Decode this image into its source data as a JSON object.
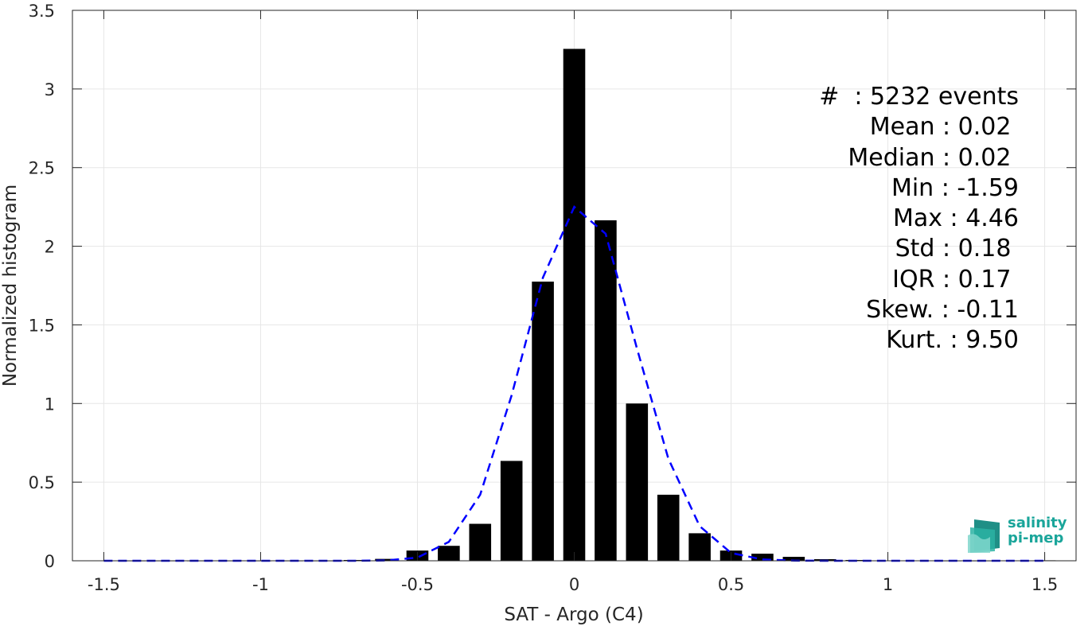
{
  "chart_data": {
    "type": "bar",
    "xlabel": "SAT - Argo (C4)",
    "ylabel": "Normalized histogram",
    "xlim": [
      -1.6,
      1.6
    ],
    "ylim": [
      0,
      3.5
    ],
    "xticks": [
      "-1.5",
      "-1",
      "-0.5",
      "0",
      "0.5",
      "1",
      "1.5"
    ],
    "yticks": [
      "0",
      "0.5",
      "1",
      "1.5",
      "2",
      "2.5",
      "3",
      "3.5"
    ],
    "grid": true,
    "bin_centers": [
      -1.5,
      -1.4,
      -1.3,
      -1.2,
      -1.1,
      -1.0,
      -0.9,
      -0.8,
      -0.7,
      -0.6,
      -0.5,
      -0.4,
      -0.3,
      -0.2,
      -0.1,
      0.0,
      0.1,
      0.2,
      0.3,
      0.4,
      0.5,
      0.6,
      0.7,
      0.8,
      0.9,
      1.0,
      1.1,
      1.2,
      1.3,
      1.4,
      1.5
    ],
    "values": [
      0.002,
      0.0,
      0.0,
      0.0,
      0.0,
      0.0,
      0.0,
      0.0,
      0.005,
      0.012,
      0.065,
      0.095,
      0.235,
      0.635,
      1.775,
      3.255,
      2.165,
      1.0,
      0.42,
      0.175,
      0.065,
      0.045,
      0.025,
      0.01,
      0.005,
      0.002,
      0.002,
      0.0,
      0.0,
      0.002,
      0.003
    ],
    "fit_curve": {
      "style": "dashed",
      "color": "#0000ff",
      "x": [
        -1.5,
        -1.4,
        -1.3,
        -1.2,
        -1.1,
        -1.0,
        -0.9,
        -0.8,
        -0.7,
        -0.6,
        -0.5,
        -0.4,
        -0.3,
        -0.2,
        -0.1,
        0.0,
        0.1,
        0.2,
        0.3,
        0.4,
        0.5,
        0.6,
        0.7,
        0.8,
        0.9,
        1.0,
        1.1,
        1.2,
        1.3,
        1.4,
        1.5
      ],
      "y": [
        0,
        0,
        0,
        0,
        0,
        0,
        0,
        0,
        0,
        0.002,
        0.02,
        0.12,
        0.42,
        1.05,
        1.8,
        2.25,
        2.08,
        1.35,
        0.65,
        0.22,
        0.05,
        0.008,
        0.001,
        0,
        0,
        0,
        0,
        0,
        0,
        0,
        0
      ]
    },
    "bar_color": "#000000"
  },
  "stats": [
    "#  : 5232 events",
    "Mean : 0.02 ",
    "Median : 0.02 ",
    "Min : -1.59",
    "Max : 4.46",
    "Std : 0.18 ",
    "IQR : 0.17 ",
    "Skew. : -0.11",
    "Kurt. : 9.50"
  ],
  "logo": {
    "line1": "salinity",
    "line2": "pi-mep",
    "color": "#1aa59a"
  }
}
